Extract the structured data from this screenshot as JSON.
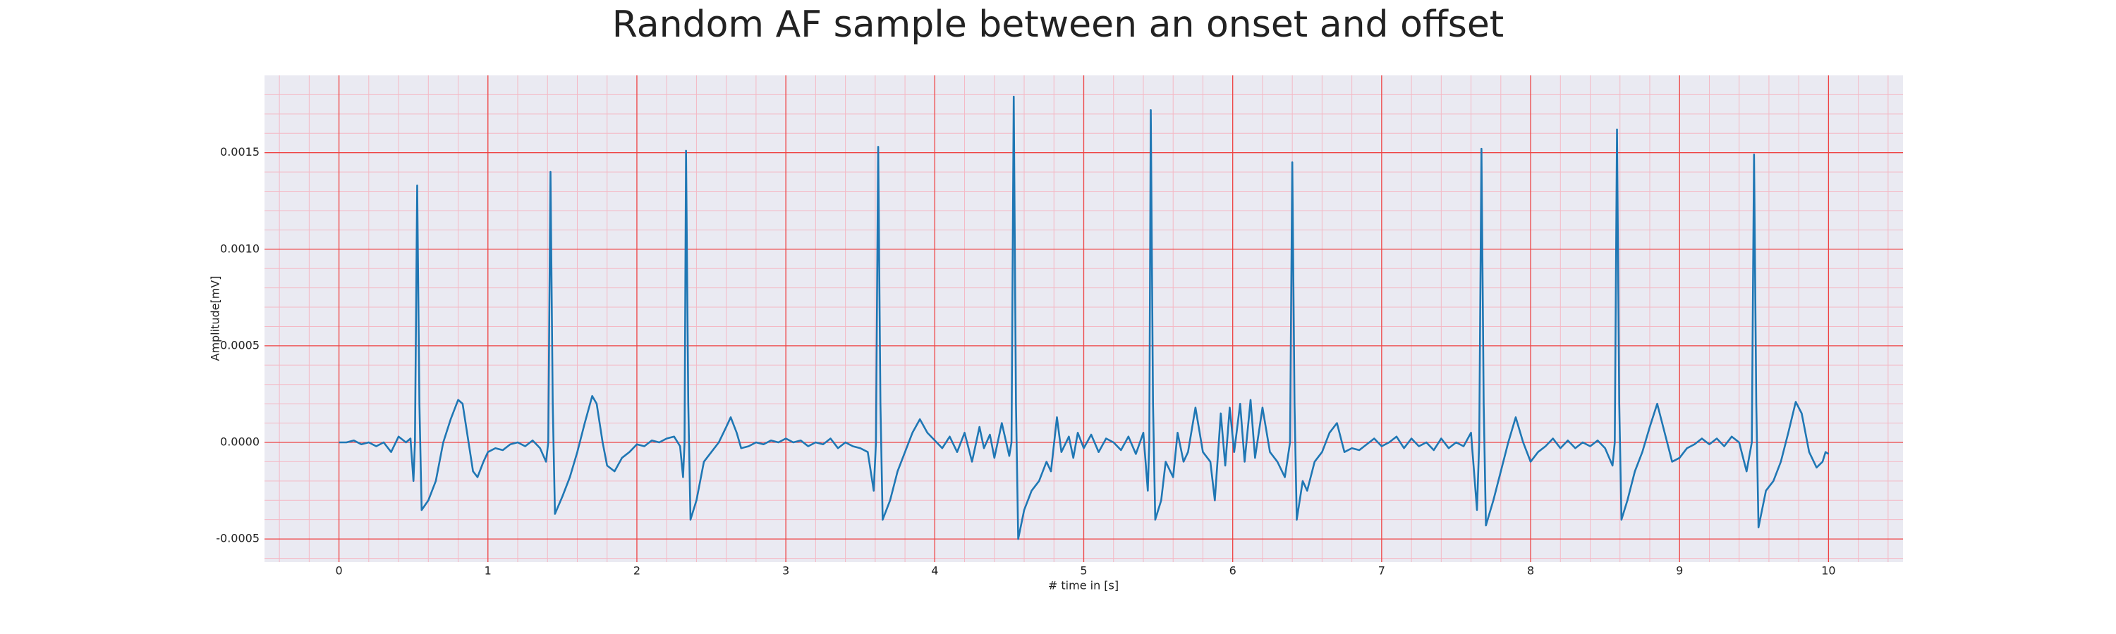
{
  "chart_data": {
    "type": "line",
    "title": "Random AF sample between an onset and offset",
    "xlabel": "# time in [s]",
    "ylabel": "Amplitude[mV]",
    "color": "#1f77b4",
    "grid": true,
    "minor_grid": true,
    "xlim": [
      -0.5,
      10.5
    ],
    "ylim": [
      -0.00062,
      0.0019
    ],
    "xticks": [
      0,
      1,
      2,
      3,
      4,
      5,
      6,
      7,
      8,
      9,
      10
    ],
    "yticks": [
      -0.0005,
      {
        "value": 0,
        "label": "0.0000"
      },
      0.0005,
      {
        "value": 0.001,
        "label": "0.0010"
      },
      0.0015
    ],
    "x": [
      0,
      0.05,
      0.1,
      0.15,
      0.2,
      0.25,
      0.3,
      0.35,
      0.4,
      0.45,
      0.48,
      0.5,
      0.51,
      0.525,
      0.54,
      0.555,
      0.6,
      0.65,
      0.7,
      0.75,
      0.8,
      0.83,
      0.87,
      0.9,
      0.93,
      0.97,
      1.0,
      1.05,
      1.1,
      1.15,
      1.2,
      1.25,
      1.3,
      1.35,
      1.39,
      1.405,
      1.42,
      1.435,
      1.45,
      1.5,
      1.55,
      1.6,
      1.65,
      1.7,
      1.73,
      1.77,
      1.8,
      1.85,
      1.9,
      1.95,
      2.0,
      2.05,
      2.1,
      2.15,
      2.2,
      2.25,
      2.29,
      2.31,
      2.32,
      2.33,
      2.345,
      2.36,
      2.4,
      2.45,
      2.5,
      2.55,
      2.6,
      2.63,
      2.67,
      2.7,
      2.75,
      2.8,
      2.85,
      2.9,
      2.95,
      3.0,
      3.05,
      3.1,
      3.15,
      3.2,
      3.25,
      3.3,
      3.35,
      3.4,
      3.45,
      3.5,
      3.55,
      3.59,
      3.605,
      3.62,
      3.635,
      3.65,
      3.7,
      3.75,
      3.8,
      3.85,
      3.9,
      3.95,
      4.0,
      4.05,
      4.1,
      4.15,
      4.2,
      4.25,
      4.3,
      4.33,
      4.37,
      4.4,
      4.45,
      4.5,
      4.515,
      4.53,
      4.545,
      4.56,
      4.6,
      4.65,
      4.7,
      4.75,
      4.78,
      4.82,
      4.85,
      4.9,
      4.93,
      4.96,
      5.0,
      5.05,
      5.1,
      5.15,
      5.2,
      5.25,
      5.3,
      5.35,
      5.4,
      5.43,
      5.44,
      5.45,
      5.465,
      5.48,
      5.52,
      5.55,
      5.6,
      5.63,
      5.67,
      5.7,
      5.75,
      5.8,
      5.85,
      5.88,
      5.92,
      5.95,
      5.98,
      6.01,
      6.05,
      6.08,
      6.12,
      6.15,
      6.2,
      6.25,
      6.3,
      6.35,
      6.385,
      6.4,
      6.415,
      6.43,
      6.47,
      6.5,
      6.55,
      6.6,
      6.65,
      6.7,
      6.75,
      6.8,
      6.85,
      6.9,
      6.95,
      7.0,
      7.05,
      7.1,
      7.15,
      7.2,
      7.25,
      7.3,
      7.35,
      7.4,
      7.45,
      7.5,
      7.55,
      7.6,
      7.64,
      7.655,
      7.67,
      7.685,
      7.7,
      7.75,
      7.8,
      7.85,
      7.9,
      7.95,
      8.0,
      8.05,
      8.1,
      8.15,
      8.2,
      8.25,
      8.3,
      8.35,
      8.4,
      8.45,
      8.5,
      8.55,
      8.565,
      8.58,
      8.595,
      8.61,
      8.65,
      8.7,
      8.75,
      8.8,
      8.85,
      8.9,
      8.95,
      9.0,
      9.05,
      9.1,
      9.15,
      9.2,
      9.25,
      9.3,
      9.35,
      9.4,
      9.45,
      9.485,
      9.5,
      9.515,
      9.53,
      9.58,
      9.63,
      9.68,
      9.73,
      9.78,
      9.82,
      9.87,
      9.92,
      9.96,
      9.98,
      10.0
    ],
    "values": [
      0,
      0,
      1e-05,
      -1e-05,
      0,
      -2e-05,
      0,
      -5e-05,
      3e-05,
      0,
      2e-05,
      -0.0002,
      0,
      0.00133,
      0.0002,
      -0.00035,
      -0.0003,
      -0.0002,
      0,
      0.00012,
      0.00022,
      0.0002,
      0,
      -0.00015,
      -0.00018,
      -0.0001,
      -5e-05,
      -3e-05,
      -4e-05,
      -1e-05,
      0,
      -2e-05,
      1e-05,
      -3e-05,
      -0.0001,
      0,
      0.0014,
      0.0002,
      -0.00037,
      -0.00028,
      -0.00018,
      -5e-05,
      0.0001,
      0.00024,
      0.0002,
      0,
      -0.00012,
      -0.00015,
      -8e-05,
      -5e-05,
      -1e-05,
      -2e-05,
      1e-05,
      0,
      2e-05,
      3e-05,
      -2e-05,
      -0.00018,
      0,
      0.00151,
      0.0002,
      -0.0004,
      -0.0003,
      -0.0001,
      -5e-05,
      0,
      8e-05,
      0.00013,
      5e-05,
      -3e-05,
      -2e-05,
      0,
      -1e-05,
      1e-05,
      0,
      2e-05,
      0,
      1e-05,
      -2e-05,
      0,
      -1e-05,
      2e-05,
      -3e-05,
      0,
      -2e-05,
      -3e-05,
      -5e-05,
      -0.00025,
      0,
      0.00153,
      0.0002,
      -0.0004,
      -0.0003,
      -0.00015,
      -5e-05,
      5e-05,
      0.00012,
      5e-05,
      1e-05,
      -3e-05,
      3e-05,
      -5e-05,
      5e-05,
      -0.0001,
      8e-05,
      -3e-05,
      4e-05,
      -8e-05,
      0.0001,
      -7e-05,
      0,
      0.00179,
      0.0002,
      -0.0005,
      -0.00035,
      -0.00025,
      -0.0002,
      -0.0001,
      -0.00015,
      0.00013,
      -5e-05,
      3e-05,
      -8e-05,
      5e-05,
      -3e-05,
      4e-05,
      -5e-05,
      2e-05,
      0,
      -4e-05,
      3e-05,
      -6e-05,
      5e-05,
      -0.00025,
      0,
      0.00172,
      0.0002,
      -0.0004,
      -0.0003,
      -0.0001,
      -0.00018,
      5e-05,
      -0.0001,
      -5e-05,
      0.00018,
      -5e-05,
      -0.0001,
      -0.0003,
      0.00015,
      -0.00012,
      0.00018,
      -5e-05,
      0.0002,
      -0.0001,
      0.00022,
      -8e-05,
      0.00018,
      -5e-05,
      -0.0001,
      -0.00018,
      0,
      0.00145,
      0.0002,
      -0.0004,
      -0.0002,
      -0.00025,
      -0.0001,
      -5e-05,
      5e-05,
      0.0001,
      -5e-05,
      -3e-05,
      -4e-05,
      -1e-05,
      2e-05,
      -2e-05,
      0,
      3e-05,
      -3e-05,
      2e-05,
      -2e-05,
      0,
      -4e-05,
      2e-05,
      -3e-05,
      0,
      -2e-05,
      5e-05,
      -0.00035,
      0,
      0.00152,
      0.0002,
      -0.00043,
      -0.0003,
      -0.00015,
      0,
      0.00013,
      0,
      -0.0001,
      -5e-05,
      -2e-05,
      2e-05,
      -3e-05,
      1e-05,
      -3e-05,
      0,
      -2e-05,
      1e-05,
      -3e-05,
      -0.00012,
      0,
      0.00162,
      0.0002,
      -0.0004,
      -0.0003,
      -0.00015,
      -5e-05,
      8e-05,
      0.0002,
      5e-05,
      -0.0001,
      -8e-05,
      -3e-05,
      -1e-05,
      2e-05,
      -1e-05,
      2e-05,
      -2e-05,
      3e-05,
      0,
      -0.00015,
      0,
      0.00149,
      0.0002,
      -0.00044,
      -0.00025,
      -0.0002,
      -0.0001,
      5e-05,
      0.00021,
      0.00015,
      -5e-05,
      -0.00013,
      -0.0001,
      -5e-05,
      -6e-05
    ]
  }
}
